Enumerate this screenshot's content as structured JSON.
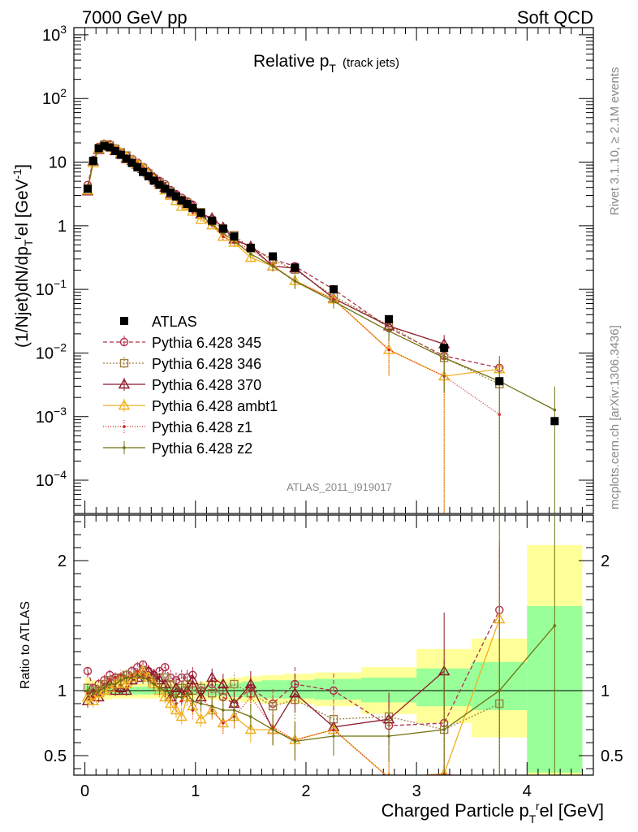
{
  "header": {
    "energy_label": "7000 GeV pp",
    "category_label": "Soft QCD",
    "analysis_id": "ATLAS_2011_I919017",
    "side_rivet": "Rivet 3.1.10, ≥ 2.1M events",
    "side_mcplots": "mcplots.cern.ch [arXiv:1306.3436]"
  },
  "chart_data": {
    "type": "scatter",
    "title": "Relative p_T (track jets)",
    "title_main": "Relative p",
    "title_sub": "T",
    "title_extra": "(track jets)",
    "xlabel": "Charged Particle p_T^rel [GeV]",
    "ylabel": "(1/Njet)dN/dp_T^rel [GeV^-1]",
    "ratio_ylabel": "Ratio to ATLAS",
    "xlim": [
      -0.1,
      4.6
    ],
    "ylim_main": [
      3e-05,
      1300
    ],
    "yscale_main": "log",
    "ylim_ratio": [
      0.35,
      2.35
    ],
    "legend_position": "middle-left",
    "x_ticks": [
      "0",
      "1",
      "2",
      "3",
      "4"
    ],
    "y_ticks_main": [
      {
        "base": "10",
        "exp": "3"
      },
      {
        "base": "10",
        "exp": "2"
      },
      {
        "base": "10",
        "exp": ""
      },
      {
        "base": "1",
        "exp": ""
      },
      {
        "base": "10",
        "exp": "−1"
      },
      {
        "base": "10",
        "exp": "−2"
      },
      {
        "base": "10",
        "exp": "−3"
      },
      {
        "base": "10",
        "exp": "−4"
      }
    ],
    "y_ticks_ratio": [
      "0.5",
      "1",
      "2"
    ],
    "x": [
      0.025,
      0.075,
      0.125,
      0.175,
      0.225,
      0.275,
      0.325,
      0.375,
      0.425,
      0.475,
      0.525,
      0.575,
      0.625,
      0.675,
      0.725,
      0.775,
      0.825,
      0.875,
      0.925,
      0.975,
      1.05,
      1.15,
      1.25,
      1.35,
      1.5,
      1.7,
      1.9,
      2.25,
      2.75,
      3.25,
      3.75,
      4.25
    ],
    "data": {
      "name": "ATLAS",
      "values": [
        3.8,
        10.5,
        16.5,
        18.0,
        17.0,
        15.0,
        13.0,
        11.3,
        9.7,
        8.3,
        7.0,
        6.0,
        5.1,
        4.4,
        3.8,
        3.3,
        2.9,
        2.5,
        2.2,
        1.9,
        1.6,
        1.2,
        0.9,
        0.68,
        0.45,
        0.33,
        0.22,
        0.1,
        0.034,
        0.012,
        0.0036,
        0.00085
      ],
      "ratio_band_outer": [
        [
          0.9,
          1.1
        ],
        [
          0.92,
          1.08
        ],
        [
          0.93,
          1.07
        ],
        [
          0.93,
          1.07
        ],
        [
          0.93,
          1.07
        ],
        [
          0.94,
          1.06
        ],
        [
          0.94,
          1.06
        ],
        [
          0.94,
          1.06
        ],
        [
          0.94,
          1.06
        ],
        [
          0.94,
          1.06
        ],
        [
          0.94,
          1.06
        ],
        [
          0.94,
          1.06
        ],
        [
          0.94,
          1.06
        ],
        [
          0.94,
          1.06
        ],
        [
          0.94,
          1.06
        ],
        [
          0.94,
          1.06
        ],
        [
          0.94,
          1.06
        ],
        [
          0.94,
          1.06
        ],
        [
          0.94,
          1.06
        ],
        [
          0.94,
          1.06
        ],
        [
          0.93,
          1.07
        ],
        [
          0.93,
          1.08
        ],
        [
          0.92,
          1.09
        ],
        [
          0.92,
          1.1
        ],
        [
          0.91,
          1.11
        ],
        [
          0.9,
          1.12
        ],
        [
          0.9,
          1.13
        ],
        [
          0.88,
          1.14
        ],
        [
          0.82,
          1.18
        ],
        [
          0.75,
          1.32
        ],
        [
          0.64,
          1.4
        ],
        [
          0.35,
          2.12
        ]
      ],
      "ratio_band_inner": [
        [
          0.96,
          1.04
        ],
        [
          0.97,
          1.03
        ],
        [
          0.97,
          1.03
        ],
        [
          0.97,
          1.03
        ],
        [
          0.97,
          1.03
        ],
        [
          0.97,
          1.03
        ],
        [
          0.97,
          1.03
        ],
        [
          0.97,
          1.03
        ],
        [
          0.97,
          1.03
        ],
        [
          0.97,
          1.03
        ],
        [
          0.97,
          1.03
        ],
        [
          0.97,
          1.03
        ],
        [
          0.97,
          1.03
        ],
        [
          0.97,
          1.03
        ],
        [
          0.97,
          1.03
        ],
        [
          0.97,
          1.03
        ],
        [
          0.97,
          1.03
        ],
        [
          0.97,
          1.03
        ],
        [
          0.97,
          1.03
        ],
        [
          0.97,
          1.03
        ],
        [
          0.96,
          1.04
        ],
        [
          0.96,
          1.05
        ],
        [
          0.96,
          1.05
        ],
        [
          0.95,
          1.06
        ],
        [
          0.95,
          1.07
        ],
        [
          0.94,
          1.08
        ],
        [
          0.94,
          1.08
        ],
        [
          0.93,
          1.09
        ],
        [
          0.91,
          1.1
        ],
        [
          0.88,
          1.17
        ],
        [
          0.85,
          1.22
        ],
        [
          0.37,
          1.65
        ]
      ]
    },
    "series": [
      {
        "name": "Pythia 6.428 345",
        "color": "#b0304a",
        "dash": "5,3",
        "marker": "circle",
        "ratio": [
          1.15,
          1.02,
          1.05,
          1.08,
          1.12,
          1.1,
          1.1,
          1.12,
          1.15,
          1.18,
          1.2,
          1.15,
          1.12,
          1.15,
          1.18,
          1.1,
          1.08,
          1.1,
          1.1,
          1.12,
          1.0,
          1.05,
          0.95,
          0.9,
          1.02,
          0.9,
          1.05,
          1.0,
          0.73,
          0.75,
          1.62,
          null
        ],
        "ratio_err": [
          0.05,
          0.05,
          0.04,
          0.04,
          0.04,
          0.04,
          0.04,
          0.04,
          0.04,
          0.04,
          0.05,
          0.05,
          0.05,
          0.05,
          0.05,
          0.06,
          0.06,
          0.06,
          0.07,
          0.07,
          0.06,
          0.07,
          0.08,
          0.09,
          0.1,
          0.12,
          0.15,
          0.15,
          0.2,
          0.5,
          0.5,
          null
        ]
      },
      {
        "name": "Pythia 6.428 346",
        "color": "#a08040",
        "dash": "2,2",
        "marker": "square",
        "ratio": [
          1.02,
          0.98,
          1.0,
          1.05,
          1.08,
          1.08,
          1.1,
          1.12,
          1.1,
          1.12,
          1.15,
          1.1,
          1.08,
          1.1,
          1.1,
          1.05,
          1.0,
          1.02,
          1.05,
          1.0,
          1.02,
          0.98,
          1.0,
          1.05,
          0.98,
          0.88,
          0.93,
          0.78,
          0.8,
          0.7,
          0.9,
          null
        ],
        "ratio_err": [
          0.05,
          0.05,
          0.04,
          0.04,
          0.04,
          0.04,
          0.04,
          0.04,
          0.04,
          0.04,
          0.05,
          0.05,
          0.05,
          0.05,
          0.05,
          0.06,
          0.06,
          0.06,
          0.07,
          0.07,
          0.06,
          0.07,
          0.08,
          0.09,
          0.1,
          0.12,
          0.15,
          0.15,
          0.2,
          0.5,
          1.2,
          null
        ]
      },
      {
        "name": "Pythia 6.428 370",
        "color": "#8b1a2a",
        "dash": "",
        "marker": "triangle",
        "ratio": [
          0.92,
          0.98,
          0.95,
          1.0,
          1.05,
          1.0,
          1.02,
          1.0,
          1.08,
          1.1,
          1.12,
          1.15,
          1.12,
          1.08,
          1.05,
          0.95,
          1.02,
          0.98,
          1.0,
          1.08,
          0.95,
          1.1,
          1.05,
          0.9,
          1.05,
          0.7,
          0.98,
          0.72,
          0.78,
          1.15,
          null,
          null
        ],
        "ratio_err": [
          0.05,
          0.05,
          0.04,
          0.04,
          0.04,
          0.04,
          0.04,
          0.04,
          0.04,
          0.04,
          0.05,
          0.05,
          0.05,
          0.05,
          0.05,
          0.06,
          0.06,
          0.06,
          0.07,
          0.07,
          0.06,
          0.07,
          0.08,
          0.09,
          0.1,
          0.12,
          0.15,
          0.15,
          0.2,
          0.45,
          null,
          null
        ]
      },
      {
        "name": "Pythia 6.428 ambt1",
        "color": "#f0b020",
        "dash": "",
        "marker": "triangle",
        "ratio": [
          0.95,
          0.92,
          0.98,
          1.0,
          1.02,
          1.05,
          1.08,
          1.05,
          1.1,
          1.12,
          1.15,
          1.1,
          1.05,
          1.0,
          0.95,
          0.9,
          0.85,
          0.8,
          0.95,
          0.88,
          0.78,
          0.85,
          0.75,
          0.8,
          0.7,
          0.7,
          0.62,
          0.7,
          0.33,
          0.36,
          1.55,
          null
        ],
        "ratio_err": [
          0.05,
          0.05,
          0.04,
          0.04,
          0.04,
          0.04,
          0.04,
          0.04,
          0.04,
          0.04,
          0.05,
          0.05,
          0.05,
          0.05,
          0.05,
          0.06,
          0.06,
          0.06,
          0.07,
          0.07,
          0.06,
          0.07,
          0.08,
          0.09,
          0.1,
          0.12,
          0.15,
          0.15,
          0.2,
          0.5,
          0.6,
          null
        ]
      },
      {
        "name": "Pythia 6.428 z1",
        "color": "#dd2222",
        "dash": "1,2",
        "marker": "dot",
        "ratio": [
          0.98,
          0.95,
          1.0,
          1.05,
          1.08,
          1.1,
          1.12,
          1.1,
          1.12,
          1.15,
          1.12,
          1.1,
          1.05,
          1.02,
          1.0,
          0.95,
          0.9,
          0.92,
          1.0,
          0.85,
          0.95,
          0.85,
          0.75,
          0.8,
          0.95,
          0.72,
          0.62,
          0.7,
          0.33,
          0.36,
          0.3,
          null
        ],
        "ratio_err": [
          0.05,
          0.05,
          0.04,
          0.04,
          0.04,
          0.04,
          0.04,
          0.04,
          0.04,
          0.04,
          0.05,
          0.05,
          0.05,
          0.05,
          0.05,
          0.06,
          0.06,
          0.06,
          0.07,
          0.07,
          0.06,
          0.07,
          0.08,
          0.09,
          0.1,
          0.12,
          0.15,
          0.15,
          0.2,
          0.5,
          0.8,
          null
        ]
      },
      {
        "name": "Pythia 6.428 z2",
        "color": "#707010",
        "dash": "",
        "marker": "dot",
        "ratio": [
          1.0,
          0.98,
          1.0,
          1.02,
          1.05,
          1.05,
          1.08,
          1.1,
          1.1,
          1.12,
          1.1,
          1.08,
          1.05,
          1.02,
          1.0,
          0.98,
          0.95,
          0.95,
          0.98,
          0.92,
          0.9,
          0.88,
          0.85,
          0.85,
          0.8,
          0.7,
          0.61,
          0.65,
          0.65,
          0.7,
          1.0,
          1.5
        ],
        "ratio_err": [
          0.05,
          0.05,
          0.04,
          0.04,
          0.04,
          0.04,
          0.04,
          0.04,
          0.04,
          0.04,
          0.05,
          0.05,
          0.05,
          0.05,
          0.05,
          0.06,
          0.06,
          0.06,
          0.07,
          0.07,
          0.06,
          0.07,
          0.08,
          0.09,
          0.1,
          0.12,
          0.15,
          0.15,
          0.2,
          0.5,
          1.5,
          2.0
        ]
      }
    ]
  }
}
